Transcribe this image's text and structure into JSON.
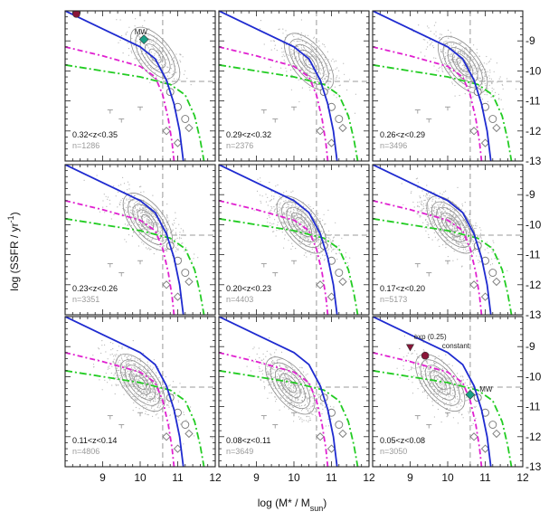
{
  "chart_data": {
    "type": "scatter",
    "xlabel": "log (M* / M_sun)",
    "xlabel_parts": {
      "pre": "log (M* / M",
      "sub": "sun",
      "post": ")"
    },
    "ylabel": "log (SSFR / yr^-1)",
    "ylabel_parts": {
      "pre": "log (SSFR / yr",
      "sup": "-1",
      "post": ")"
    },
    "xlim": [
      8,
      12
    ],
    "ylim": [
      -13,
      -8
    ],
    "xticks": [
      "9",
      "10",
      "11",
      "12"
    ],
    "yticks": [
      "-9",
      "-10",
      "-11",
      "-12",
      "-13"
    ],
    "grid": false,
    "layout": "3x3 panel grid, shared axes",
    "reference_lines": {
      "x": 10.6,
      "y": -10.35,
      "style": "grey dashed"
    },
    "colors": {
      "blue": "#1f2bd0",
      "magenta": "#e020d0",
      "green": "#22cc22",
      "grey": "#888888"
    },
    "model_tracks": {
      "blue_solid": [
        [
          8.0,
          -8.0
        ],
        [
          9.0,
          -8.6
        ],
        [
          10.0,
          -9.2
        ],
        [
          10.4,
          -9.6
        ],
        [
          10.7,
          -10.3
        ],
        [
          10.9,
          -11.1
        ],
        [
          11.05,
          -12.0
        ],
        [
          11.15,
          -13.0
        ]
      ],
      "magenta_dashdot": [
        [
          8.0,
          -9.2
        ],
        [
          9.0,
          -9.5
        ],
        [
          10.0,
          -9.85
        ],
        [
          10.4,
          -10.2
        ],
        [
          10.6,
          -10.8
        ],
        [
          10.75,
          -11.6
        ],
        [
          10.85,
          -12.4
        ],
        [
          10.9,
          -13.0
        ]
      ],
      "green_dashdot": [
        [
          8.0,
          -9.8
        ],
        [
          9.0,
          -10.0
        ],
        [
          10.0,
          -10.2
        ],
        [
          10.8,
          -10.45
        ],
        [
          11.2,
          -10.8
        ],
        [
          11.45,
          -11.5
        ],
        [
          11.6,
          -12.3
        ],
        [
          11.7,
          -13.0
        ]
      ]
    },
    "panels": [
      {
        "z_label": "0.32<z<0.35",
        "n_label": "n=1286",
        "center": [
          10.4,
          -9.5
        ],
        "scatter": 1286,
        "markers": [
          {
            "x": 8.3,
            "y": -8.1,
            "color": "#8a1538",
            "shape": "circle"
          },
          {
            "x": 10.1,
            "y": -8.95,
            "color": "#1aa086",
            "shape": "diamond"
          }
        ],
        "annotations": [
          {
            "text": "MW",
            "x": 9.85,
            "y": -8.78
          }
        ]
      },
      {
        "z_label": "0.29<z<0.32",
        "n_label": "n=2376",
        "center": [
          10.4,
          -9.7
        ],
        "scatter": 2376,
        "markers": [],
        "annotations": []
      },
      {
        "z_label": "0.26<z<0.29",
        "n_label": "n=3496",
        "center": [
          10.4,
          -9.8
        ],
        "scatter": 3496,
        "markers": [],
        "annotations": []
      },
      {
        "z_label": "0.23<z<0.26",
        "n_label": "n=3351",
        "center": [
          10.2,
          -9.9
        ],
        "scatter": 3351,
        "markers": [],
        "annotations": []
      },
      {
        "z_label": "0.20<z<0.23",
        "n_label": "n=4403",
        "center": [
          10.2,
          -10.0
        ],
        "scatter": 4403,
        "markers": [],
        "annotations": []
      },
      {
        "z_label": "0.17<z<0.20",
        "n_label": "n=5173",
        "center": [
          10.1,
          -10.0
        ],
        "scatter": 5173,
        "markers": [],
        "annotations": []
      },
      {
        "z_label": "0.11<z<0.14",
        "n_label": "n=4806",
        "center": [
          10.0,
          -10.2
        ],
        "scatter": 4806,
        "markers": [],
        "annotations": []
      },
      {
        "z_label": "0.08<z<0.11",
        "n_label": "n=3649",
        "center": [
          9.9,
          -10.3
        ],
        "scatter": 3649,
        "markers": [],
        "annotations": []
      },
      {
        "z_label": "0.05<z<0.08",
        "n_label": "n=3050",
        "center": [
          9.8,
          -10.2
        ],
        "scatter": 3050,
        "markers": [
          {
            "x": 9.0,
            "y": -9.05,
            "color": "#8a1538",
            "shape": "triangle"
          },
          {
            "x": 9.4,
            "y": -9.3,
            "color": "#8a1538",
            "shape": "circle"
          },
          {
            "x": 10.6,
            "y": -10.6,
            "color": "#1aa086",
            "shape": "diamond"
          }
        ],
        "annotations": [
          {
            "text": "exp (0.25)",
            "x": 9.1,
            "y": -8.75
          },
          {
            "text": "constant",
            "x": 9.85,
            "y": -9.05
          },
          {
            "text": "MW",
            "x": 10.85,
            "y": -10.5
          }
        ]
      }
    ]
  }
}
